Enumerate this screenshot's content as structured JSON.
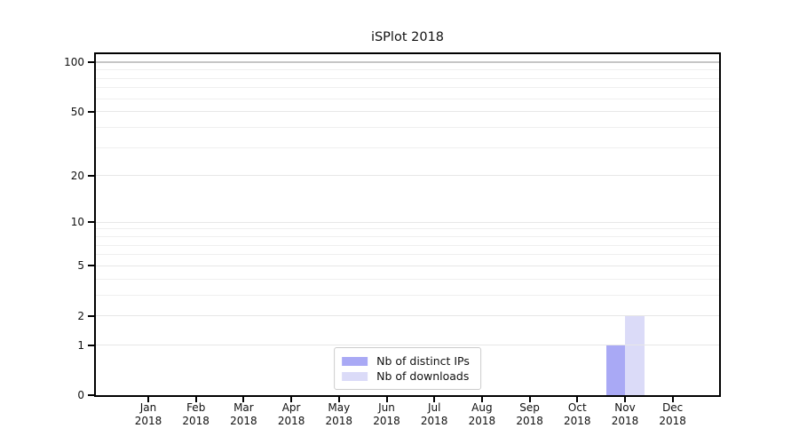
{
  "chart_data": {
    "type": "bar",
    "title": "iSPlot 2018",
    "xlabel": "",
    "ylabel": "",
    "categories": [
      "Jan",
      "Feb",
      "Mar",
      "Apr",
      "May",
      "Jun",
      "Jul",
      "Aug",
      "Sep",
      "Oct",
      "Nov",
      "Dec"
    ],
    "category_year": "2018",
    "series": [
      {
        "name": "Nb of distinct IPs",
        "color": "#a9a9f5",
        "values": [
          0,
          0,
          0,
          0,
          0,
          0,
          0,
          0,
          0,
          0,
          1,
          0
        ]
      },
      {
        "name": "Nb of downloads",
        "color": "#dbdbf8",
        "values": [
          0,
          0,
          0,
          0,
          0,
          0,
          0,
          0,
          0,
          0,
          2,
          0
        ]
      }
    ],
    "y_axis": {
      "scale": "log1p",
      "tick_values": [
        0,
        1,
        2,
        5,
        10,
        20,
        50,
        100
      ],
      "tick_labels": [
        "0",
        "1",
        "2",
        "5",
        "10",
        "20",
        "50",
        "100"
      ],
      "minor_gridline_values": [
        3,
        4,
        6,
        7,
        8,
        9,
        30,
        40,
        60,
        70,
        80,
        90
      ],
      "ylim": [
        0,
        112
      ]
    },
    "grid": true,
    "legend_position": "inside-bottom-center"
  },
  "colors": {
    "background": "#ffffff",
    "axis_frame": "#000000",
    "text": "#111111",
    "grid_top_line": "#c6c6c6",
    "grid_major": "#e7e7e7",
    "grid_minor": "#efefef",
    "legend_border": "#cccccc",
    "bar_distinct_ips": "#a9a9f5",
    "bar_downloads": "#dbdbf8"
  }
}
